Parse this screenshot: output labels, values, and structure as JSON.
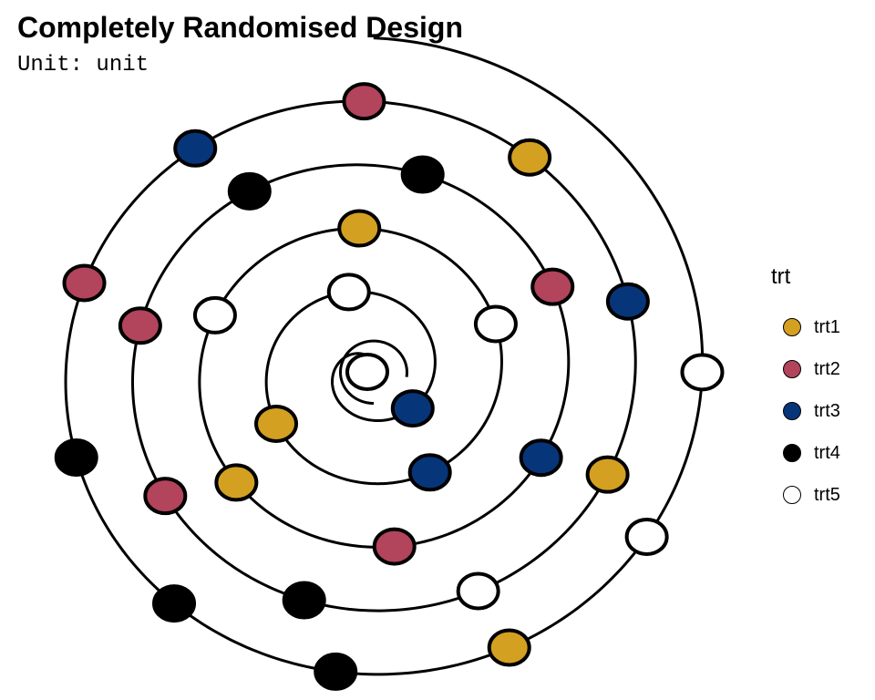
{
  "header": {
    "title": "Completely Randomised Design",
    "subtitle": "Unit: unit"
  },
  "legend": {
    "title": "trt",
    "items": [
      {
        "label": "trt1",
        "color": "#D4A021"
      },
      {
        "label": "trt2",
        "color": "#B2445B"
      },
      {
        "label": "trt3",
        "color": "#073579"
      },
      {
        "label": "trt4",
        "color": "#000000"
      },
      {
        "label": "trt5",
        "color": "#FFFFFF"
      }
    ]
  },
  "design": {
    "units": 30,
    "allocation": [
      "trt5",
      "trt3",
      "trt5",
      "trt1",
      "trt3",
      "trt5",
      "trt1",
      "trt5",
      "trt1",
      "trt2",
      "trt3",
      "trt2",
      "trt4",
      "trt4",
      "trt2",
      "trt2",
      "trt4",
      "trt5",
      "trt1",
      "trt3",
      "trt1",
      "trt2",
      "trt3",
      "trt2",
      "trt4",
      "trt4",
      "trt4",
      "trt1",
      "trt5",
      "trt5"
    ]
  }
}
